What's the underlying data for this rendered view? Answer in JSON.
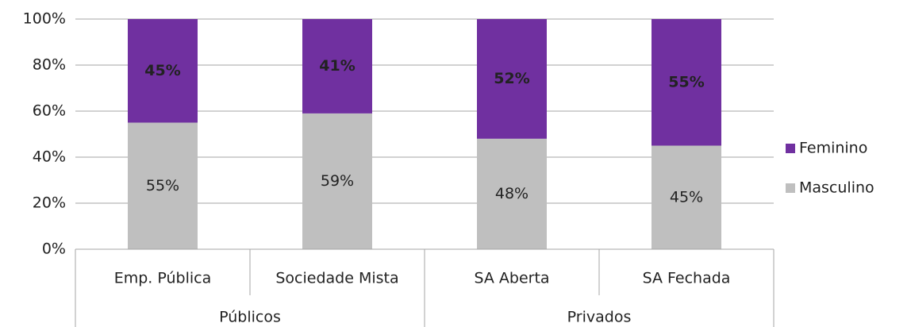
{
  "chart_data": {
    "type": "stacked_bar",
    "groups": [
      {
        "name": "Públicos",
        "categories": [
          "Emp. Pública",
          "Sociedade Mista"
        ]
      },
      {
        "name": "Privados",
        "categories": [
          "SA Aberta",
          "SA Fechada"
        ]
      }
    ],
    "series": [
      {
        "name": "Masculino",
        "color": "#bfbfbf",
        "values": [
          55,
          59,
          48,
          45
        ],
        "value_labels": [
          "55%",
          "59%",
          "48%",
          "45%"
        ]
      },
      {
        "name": "Feminino",
        "color": "#7030a0",
        "values": [
          45,
          41,
          52,
          55
        ],
        "value_labels": [
          "45%",
          "41%",
          "52%",
          "55%"
        ]
      }
    ],
    "ylim": [
      0,
      100
    ],
    "yticks": [
      {
        "value": 0,
        "label": "0%"
      },
      {
        "value": 20,
        "label": "20%"
      },
      {
        "value": 40,
        "label": "40%"
      },
      {
        "value": 60,
        "label": "60%"
      },
      {
        "value": 80,
        "label": "80%"
      },
      {
        "value": 100,
        "label": "100%"
      }
    ],
    "grid": true,
    "legend": "right"
  }
}
